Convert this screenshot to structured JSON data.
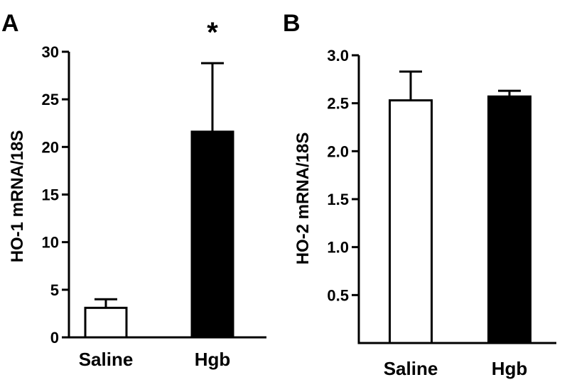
{
  "chart_data": [
    {
      "type": "bar",
      "panel": "A",
      "categories": [
        "Saline",
        "Hgb"
      ],
      "values": [
        3.1,
        21.6
      ],
      "errors": [
        0.9,
        7.2
      ],
      "fills": [
        "#ffffff",
        "#000000"
      ],
      "ylabel": "HO-1 mRNA/18S",
      "ylim": [
        0,
        30
      ],
      "yticks": [
        0,
        5,
        10,
        15,
        20,
        25,
        30
      ],
      "ytick_labels": [
        "0",
        "5",
        "10",
        "15",
        "20",
        "25",
        "30"
      ],
      "annotations": [
        {
          "category": "Hgb",
          "text": "*"
        }
      ]
    },
    {
      "type": "bar",
      "panel": "B",
      "categories": [
        "Saline",
        "Hgb"
      ],
      "values": [
        2.53,
        2.57
      ],
      "errors": [
        0.3,
        0.06
      ],
      "fills": [
        "#ffffff",
        "#000000"
      ],
      "ylabel": "HO-2 mRNA/18S",
      "ylim": [
        0,
        3.0
      ],
      "yticks": [
        0.5,
        1.0,
        1.5,
        2.0,
        2.5,
        3.0
      ],
      "ytick_labels": [
        "0.5",
        "1.0",
        "1.5",
        "2.0",
        "2.5",
        "3.0"
      ],
      "annotations": []
    }
  ]
}
